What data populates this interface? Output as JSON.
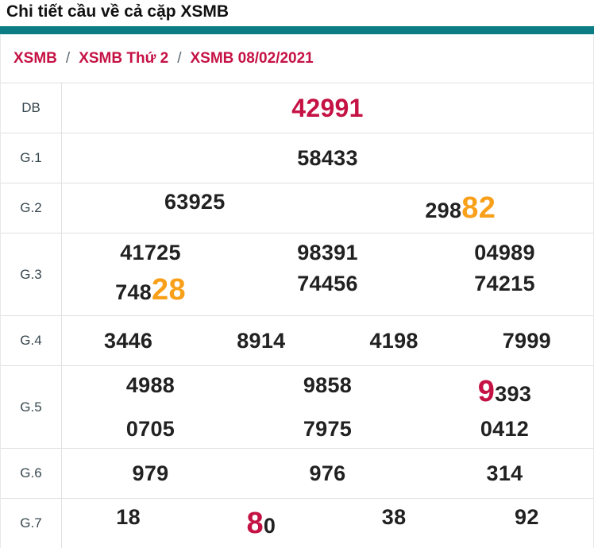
{
  "header": {
    "title": "Chi tiết cầu về cả cặp XSMB"
  },
  "colors": {
    "teal": "#0d7d85",
    "crimson": "#c51244",
    "orange": "#f9a01b",
    "number": "#212121",
    "border": "#e0e0e0"
  },
  "breadcrumb": {
    "separator": "/",
    "items": [
      {
        "label": "XSMB"
      },
      {
        "label": "XSMB Thứ 2"
      },
      {
        "label": "XSMB 08/02/2021"
      }
    ]
  },
  "table": {
    "rows": [
      {
        "label": "DB",
        "size": "xl",
        "lines": [
          [
            [
              {
                "text": "42991",
                "color": "crimson"
              }
            ]
          ]
        ]
      },
      {
        "label": "G.1",
        "lines": [
          [
            [
              {
                "text": "58433"
              }
            ]
          ]
        ]
      },
      {
        "label": "G.2",
        "lines": [
          [
            [
              {
                "text": "63925"
              }
            ],
            [
              {
                "text": "298"
              },
              {
                "text": "82",
                "color": "orange",
                "big": true
              }
            ]
          ]
        ]
      },
      {
        "label": "G.3",
        "lines": [
          [
            [
              {
                "text": "41725"
              }
            ],
            [
              {
                "text": "98391"
              }
            ],
            [
              {
                "text": "04989"
              }
            ]
          ],
          [
            [
              {
                "text": "748"
              },
              {
                "text": "28",
                "color": "orange",
                "big": true
              }
            ],
            [
              {
                "text": "74456"
              }
            ],
            [
              {
                "text": "74215"
              }
            ]
          ]
        ]
      },
      {
        "label": "G.4",
        "lines": [
          [
            [
              {
                "text": "3446"
              }
            ],
            [
              {
                "text": "8914"
              }
            ],
            [
              {
                "text": "4198"
              }
            ],
            [
              {
                "text": "7999"
              }
            ]
          ]
        ]
      },
      {
        "label": "G.5",
        "lines": [
          [
            [
              {
                "text": "4988"
              }
            ],
            [
              {
                "text": "9858"
              }
            ],
            [
              {
                "text": "9",
                "color": "crimson",
                "big": true
              },
              {
                "text": "393"
              }
            ]
          ],
          [
            [
              {
                "text": "0705"
              }
            ],
            [
              {
                "text": "7975"
              }
            ],
            [
              {
                "text": "0412"
              }
            ]
          ]
        ]
      },
      {
        "label": "G.6",
        "lines": [
          [
            [
              {
                "text": "979"
              }
            ],
            [
              {
                "text": "976"
              }
            ],
            [
              {
                "text": "314"
              }
            ]
          ]
        ]
      },
      {
        "label": "G.7",
        "lines": [
          [
            [
              {
                "text": "18"
              }
            ],
            [
              {
                "text": "8",
                "color": "crimson",
                "big": true
              },
              {
                "text": "0"
              }
            ],
            [
              {
                "text": "38"
              }
            ],
            [
              {
                "text": "92"
              }
            ]
          ]
        ]
      }
    ]
  }
}
